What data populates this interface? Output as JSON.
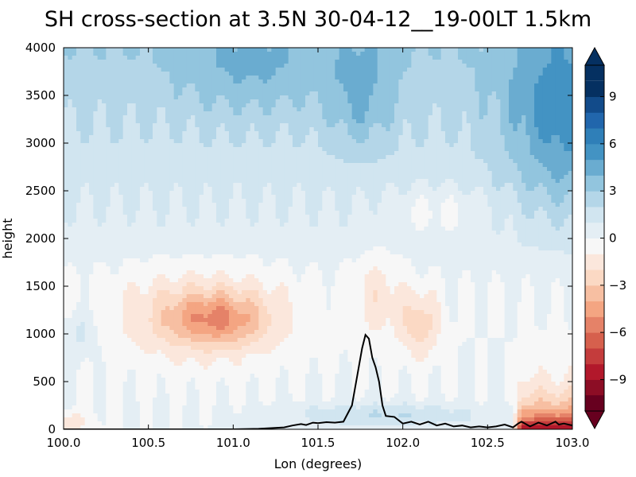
{
  "chart_data": {
    "type": "heatmap",
    "title": "SH cross-section at 3.5N 30-04-12__19-00LT 1.5km",
    "xlabel": "Lon (degrees)",
    "ylabel": "height",
    "colorbar_label": "",
    "xlim": [
      100.0,
      103.0
    ],
    "ylim": [
      0,
      4000
    ],
    "x_ticks": [
      "100.0",
      "100.5",
      "101.0",
      "101.5",
      "102.0",
      "102.5",
      "103.0"
    ],
    "y_ticks": [
      "0",
      "500",
      "1000",
      "1500",
      "2000",
      "2500",
      "3000",
      "3500",
      "4000"
    ],
    "colorbar": {
      "range": [
        -11,
        11
      ],
      "ticks": [
        "−9",
        "−6",
        "−3",
        "0",
        "3",
        "6",
        "9"
      ],
      "tick_values": [
        -9,
        -6,
        -3,
        0,
        3,
        6,
        9
      ],
      "levels": [
        -10,
        -9,
        -8,
        -7,
        -6,
        -5,
        -4,
        -3,
        -2,
        -1,
        0,
        1,
        2,
        3,
        4,
        5,
        6,
        7,
        8,
        9,
        10
      ],
      "colors": [
        "#67001f",
        "#8c0d25",
        "#b2182b",
        "#c43c3c",
        "#d6604d",
        "#e58268",
        "#f4a582",
        "#f7bfa2",
        "#fbd9c4",
        "#fbe7dc",
        "#f7f7f7",
        "#e4eef4",
        "#d1e5f0",
        "#b4d6e8",
        "#92c5de",
        "#6aacd0",
        "#4393c3",
        "#2f7fb8",
        "#2166ac",
        "#124b8a",
        "#053061"
      ],
      "extend": "both"
    },
    "terrain_series": {
      "name": "",
      "x": [
        100.0,
        101.0,
        101.15,
        101.3,
        101.35,
        101.4,
        101.43,
        101.47,
        101.5,
        101.55,
        101.6,
        101.65,
        101.7,
        101.73,
        101.76,
        101.78,
        101.8,
        101.82,
        101.84,
        101.86,
        101.88,
        101.9,
        101.95,
        102.0,
        102.05,
        102.1,
        102.15,
        102.2,
        102.25,
        102.3,
        102.35,
        102.4,
        102.45,
        102.5,
        102.55,
        102.6,
        102.65,
        102.68,
        102.7,
        102.75,
        102.8,
        102.85,
        102.9,
        102.92,
        102.95,
        103.0
      ],
      "y": [
        0,
        0,
        5,
        20,
        40,
        55,
        45,
        70,
        65,
        75,
        70,
        80,
        250,
        550,
        850,
        990,
        950,
        750,
        650,
        500,
        250,
        140,
        130,
        60,
        80,
        50,
        80,
        40,
        60,
        30,
        40,
        20,
        30,
        20,
        30,
        50,
        20,
        60,
        80,
        30,
        70,
        40,
        80,
        50,
        60,
        40
      ]
    }
  }
}
